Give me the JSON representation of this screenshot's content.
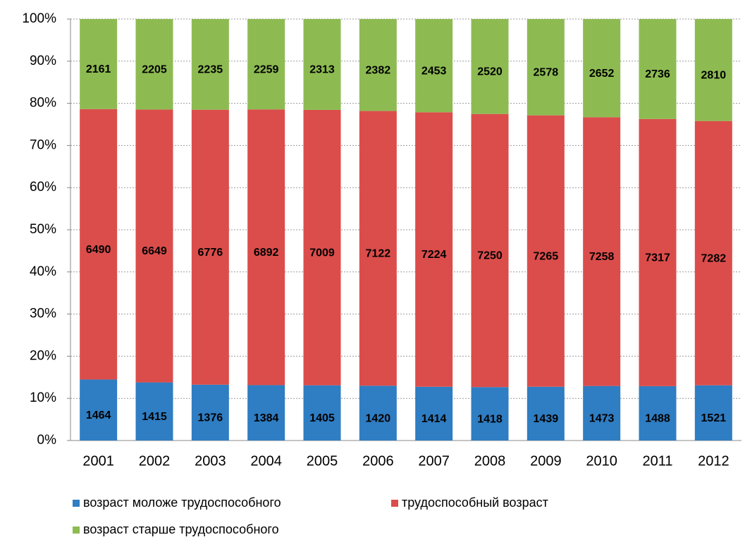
{
  "chart_data": {
    "type": "stacked_percent_bar",
    "categories": [
      "2001",
      "2002",
      "2003",
      "2004",
      "2005",
      "2006",
      "2007",
      "2008",
      "2009",
      "2010",
      "2011",
      "2012"
    ],
    "series": [
      {
        "name": "возраст моложе трудоспособного",
        "color": "#2f7dc2",
        "values": [
          1464,
          1415,
          1376,
          1384,
          1405,
          1420,
          1414,
          1418,
          1439,
          1473,
          1488,
          1521
        ]
      },
      {
        "name": "трудоспособный возраст",
        "color": "#db4d4b",
        "values": [
          6490,
          6649,
          6776,
          6892,
          7009,
          7122,
          7224,
          7250,
          7265,
          7258,
          7317,
          7282
        ]
      },
      {
        "name": "возраст старше трудоспособного",
        "color": "#8dbb52",
        "values": [
          2161,
          2205,
          2235,
          2259,
          2313,
          2382,
          2453,
          2520,
          2578,
          2652,
          2736,
          2810
        ]
      }
    ],
    "ylim": [
      0,
      100
    ],
    "yticks": [
      {
        "value": 0,
        "label": "0%"
      },
      {
        "value": 10,
        "label": "10%"
      },
      {
        "value": 20,
        "label": "20%"
      },
      {
        "value": 30,
        "label": "30%"
      },
      {
        "value": 40,
        "label": "40%"
      },
      {
        "value": 50,
        "label": "50%"
      },
      {
        "value": 60,
        "label": "60%"
      },
      {
        "value": 70,
        "label": "70%"
      },
      {
        "value": 80,
        "label": "80%"
      },
      {
        "value": 90,
        "label": "90%"
      },
      {
        "value": 100,
        "label": "100%"
      }
    ],
    "grid": true
  }
}
